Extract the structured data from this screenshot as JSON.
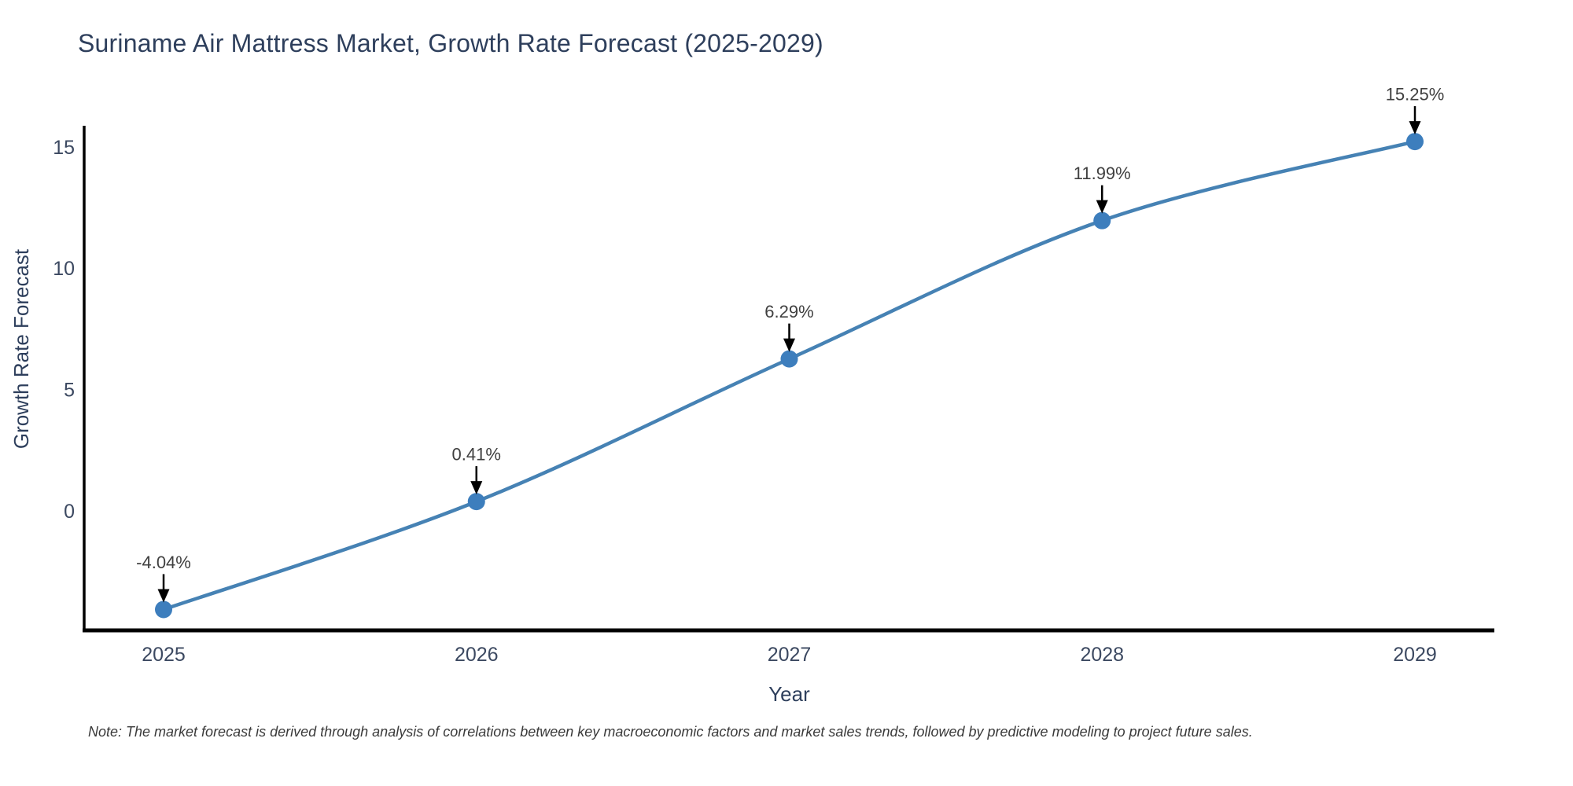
{
  "note": "Note: The market forecast is derived through analysis of correlations between key macroeconomic factors and market sales trends, followed by predictive modeling to project future sales.",
  "chart_data": {
    "type": "line",
    "title": "Suriname Air Mattress Market, Growth Rate Forecast (2025-2029)",
    "xlabel": "Year",
    "ylabel": "Growth Rate Forecast",
    "x": [
      2025,
      2026,
      2027,
      2028,
      2029
    ],
    "values": [
      -4.04,
      0.41,
      6.29,
      11.99,
      15.25
    ],
    "point_labels": [
      "-4.04%",
      "0.41%",
      "6.29%",
      "11.99%",
      "15.25%"
    ],
    "xticks": [
      "2025",
      "2026",
      "2027",
      "2028",
      "2029"
    ],
    "yticks": [
      0,
      5,
      10,
      15
    ],
    "ylim": [
      -4.9,
      15.9
    ],
    "grid": false,
    "legend": "none",
    "line_shape": "spline",
    "marker_style": "circle-with-down-arrow-annotation",
    "colors": {
      "line": "#4682b4",
      "marker": "#3d7ebd",
      "axis_line": "#000000",
      "title_text": "#2e3f5c",
      "axis_title_text": "#2e3f5c",
      "tick_text": "#3c4961",
      "annotation_text": "#404040",
      "arrow": "#000000",
      "background": "#ffffff"
    }
  }
}
